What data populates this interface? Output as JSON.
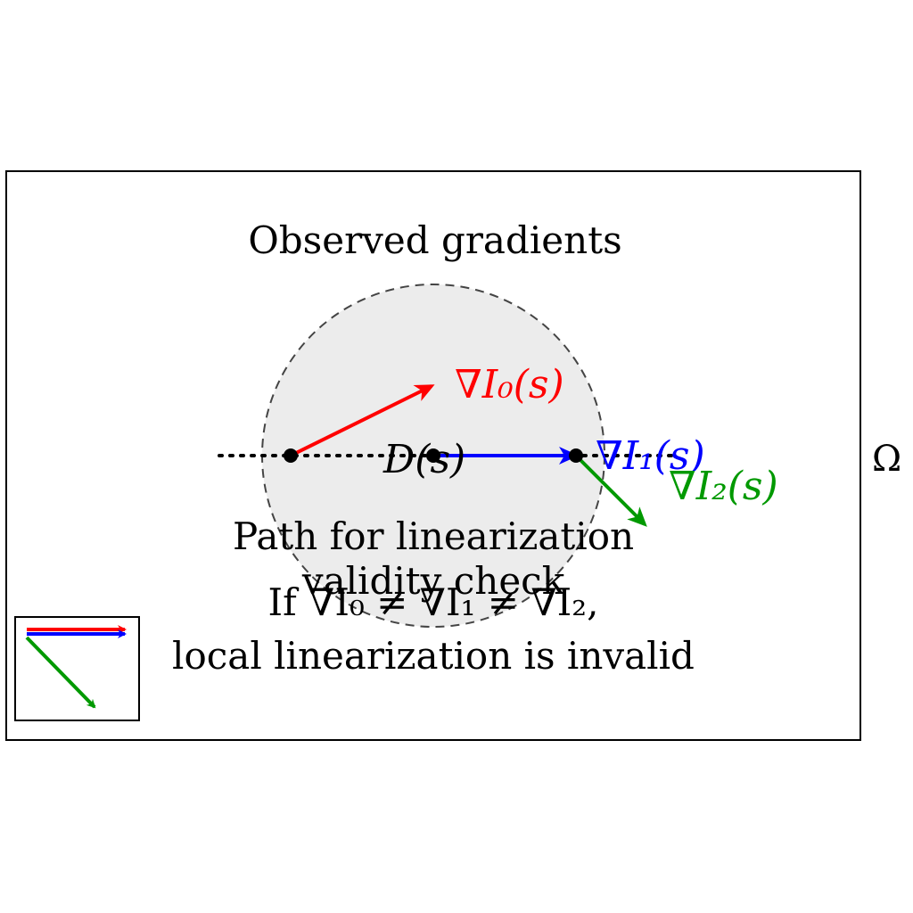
{
  "diagram": {
    "domain_label": "Ω",
    "title": "Observed gradients",
    "region_label": "D(s)",
    "gradients": [
      {
        "label": "∇I₀(s)",
        "color": "#ff0000"
      },
      {
        "label": "∇I₁(s)",
        "color": "#0000ff"
      },
      {
        "label": "∇I₂(s)",
        "color": "#009900"
      }
    ],
    "path_caption": [
      "Path for linearization",
      "validity check"
    ],
    "condition_caption": [
      "If ∇I₀ ≠ ∇I₁ ≠ ∇I₂,",
      "local linearization is invalid"
    ]
  },
  "colors": {
    "frame": "#000000",
    "region_fill": "#ececec",
    "region_stroke": "#444444",
    "path": "#000000",
    "point": "#000000"
  }
}
